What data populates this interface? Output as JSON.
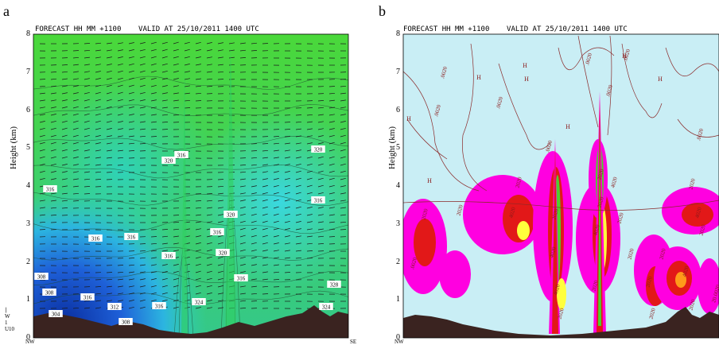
{
  "chart_data": [
    {
      "type": "heatmap",
      "panel_label": "a",
      "title": "FORECAST HH MM +1100    VALID AT 25/10/2011 1400 UTC",
      "ylabel": "Height (km)",
      "ylim": [
        0,
        8
      ],
      "yticks": [
        "0",
        "1",
        "2",
        "3",
        "4",
        "5",
        "6",
        "7",
        "8"
      ],
      "x_start_label": "NW",
      "x_end_label": "SE",
      "wind_legend": [
        "W",
        "1",
        "U10"
      ],
      "contour_labels": [
        "320",
        "316",
        "316",
        "316",
        "316",
        "316",
        "316",
        "320",
        "316",
        "308",
        "308",
        "316",
        "312",
        "304",
        "308",
        "316",
        "324",
        "316",
        "324",
        "328",
        "320",
        "320"
      ],
      "colors": {
        "low": "#0b3fb0",
        "mid": "#27c8c8",
        "high": "#46d43c",
        "terrain": "#3a2320"
      }
    },
    {
      "type": "heatmap",
      "panel_label": "b",
      "title": "FORECAST HH MM +1100    VALID AT 25/10/2011 1400 UTC",
      "ylabel": "Height (km)",
      "ylim": [
        0,
        8
      ],
      "yticks": [
        "0",
        "1",
        "2",
        "3",
        "4",
        "5",
        "6",
        "7",
        "8"
      ],
      "x_start_label": "NW",
      "contour_labels": [
        ".0020",
        ".0020",
        ".0020",
        ".0020",
        ".0020",
        ".0020",
        ".0020",
        ".0020",
        "2020",
        "2020",
        "4020",
        "2020",
        "4020",
        "2020",
        "4020",
        "2020",
        "2020",
        "2020",
        "2020",
        "4020",
        "4020",
        "2020",
        "2020",
        "2020",
        "2020",
        "4020",
        "2020",
        "2020",
        "4020",
        "20.0020",
        ".0020",
        "2020",
        "2020"
      ],
      "high_markers": [
        "H",
        "H",
        "H",
        "H",
        "H",
        "H",
        "H",
        "H"
      ],
      "colors": {
        "background": "#c9eef5",
        "magenta": "#ff00e0",
        "red": "#e21818",
        "yellow": "#ffff3c",
        "green": "#4fcf2e",
        "terrain": "#3a2320"
      }
    }
  ]
}
